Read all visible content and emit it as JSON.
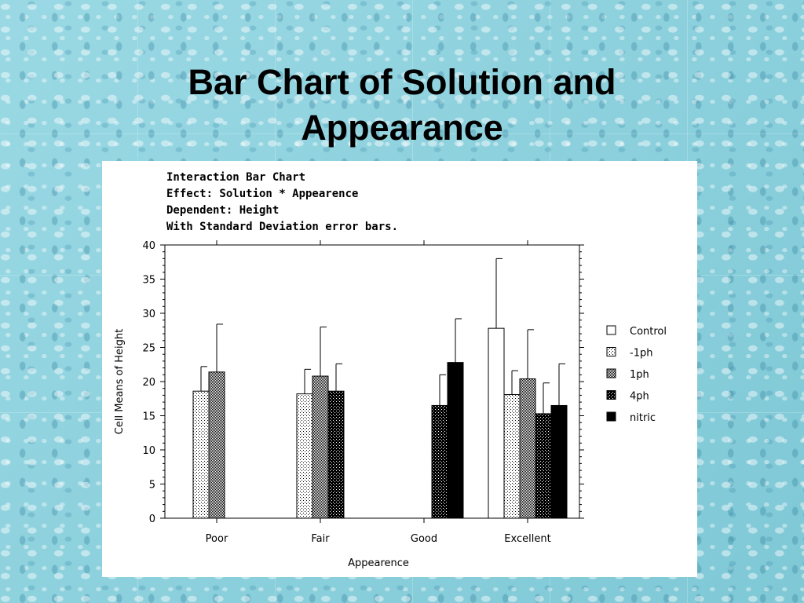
{
  "slide": {
    "title_line1": "Bar Chart of Solution and",
    "title_line2": "Appearance"
  },
  "chart_data": {
    "type": "bar",
    "header_lines": [
      "Interaction Bar Chart",
      "Effect: Solution * Appearence",
      "Dependent: Height",
      "With Standard Deviation error bars."
    ],
    "xlabel": "Appearence",
    "ylabel": "Cell Means of Height",
    "ylim": [
      0,
      40
    ],
    "yticks": [
      0,
      5,
      10,
      15,
      20,
      25,
      30,
      35,
      40
    ],
    "categories": [
      "Poor",
      "Fair",
      "Good",
      "Excellent"
    ],
    "series": [
      {
        "name": "Control",
        "fill": "white",
        "values": [
          null,
          null,
          null,
          27.8
        ],
        "error": [
          null,
          null,
          null,
          10.2
        ]
      },
      {
        "name": "-1ph",
        "fill": "light-dots",
        "values": [
          18.6,
          18.2,
          null,
          18.1
        ],
        "error": [
          3.6,
          3.6,
          null,
          3.5
        ]
      },
      {
        "name": "1ph",
        "fill": "medium-dots",
        "values": [
          21.4,
          20.8,
          null,
          20.4
        ],
        "error": [
          7.0,
          7.2,
          null,
          7.2
        ]
      },
      {
        "name": "4ph",
        "fill": "dark-checker",
        "values": [
          null,
          18.6,
          16.5,
          15.3
        ],
        "error": [
          null,
          4.0,
          4.5,
          4.5
        ]
      },
      {
        "name": "nitric",
        "fill": "black",
        "values": [
          null,
          null,
          22.8,
          16.5
        ],
        "error": [
          null,
          null,
          6.4,
          6.1
        ]
      }
    ],
    "legend_position": "right",
    "grid": false
  }
}
